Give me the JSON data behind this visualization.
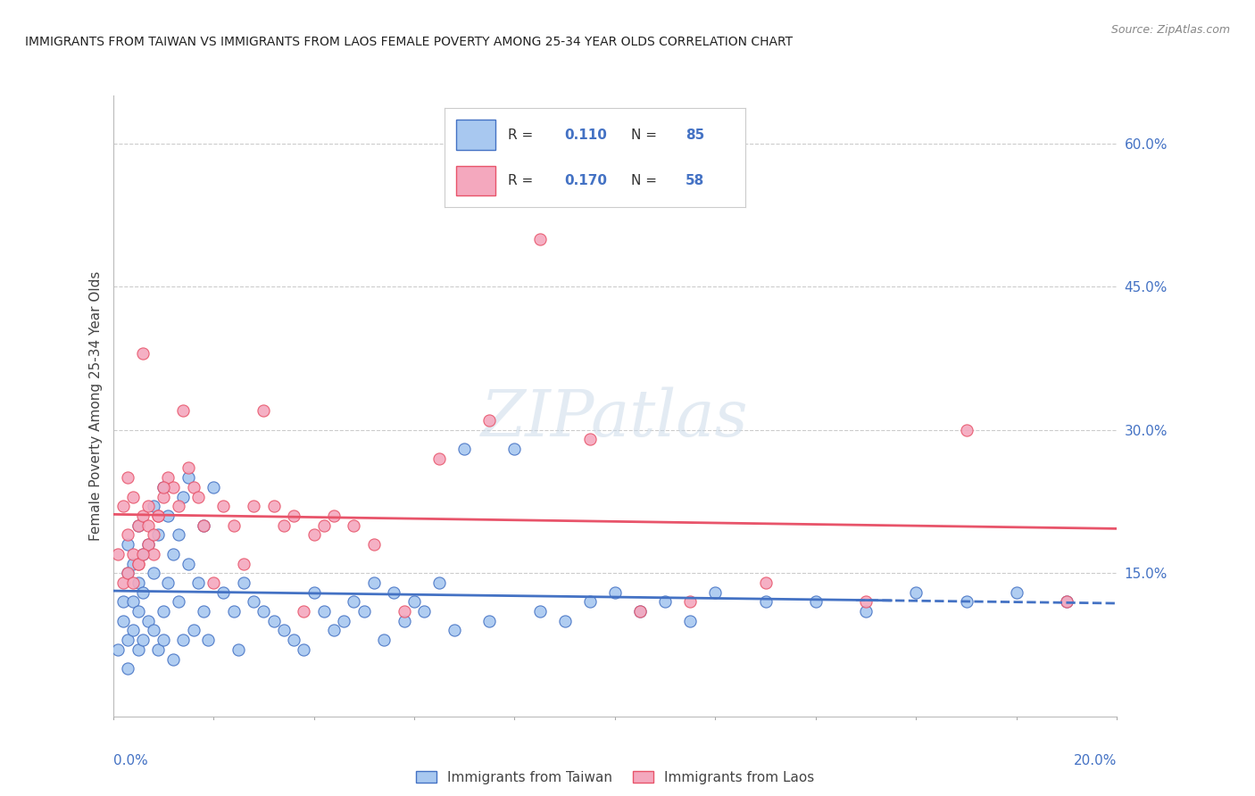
{
  "title": "IMMIGRANTS FROM TAIWAN VS IMMIGRANTS FROM LAOS FEMALE POVERTY AMONG 25-34 YEAR OLDS CORRELATION CHART",
  "source": "Source: ZipAtlas.com",
  "ylabel": "Female Poverty Among 25-34 Year Olds",
  "taiwan_color": "#a8c8f0",
  "laos_color": "#f4a8be",
  "taiwan_line_color": "#4472c4",
  "laos_line_color": "#e8546a",
  "xlim": [
    0.0,
    0.2
  ],
  "ylim": [
    0.0,
    0.65
  ],
  "taiwan_scatter_x": [
    0.001,
    0.002,
    0.002,
    0.003,
    0.003,
    0.003,
    0.003,
    0.004,
    0.004,
    0.004,
    0.005,
    0.005,
    0.005,
    0.005,
    0.006,
    0.006,
    0.006,
    0.007,
    0.007,
    0.008,
    0.008,
    0.008,
    0.009,
    0.009,
    0.01,
    0.01,
    0.01,
    0.011,
    0.011,
    0.012,
    0.012,
    0.013,
    0.013,
    0.014,
    0.014,
    0.015,
    0.015,
    0.016,
    0.017,
    0.018,
    0.018,
    0.019,
    0.02,
    0.022,
    0.024,
    0.025,
    0.026,
    0.028,
    0.03,
    0.032,
    0.034,
    0.036,
    0.038,
    0.04,
    0.042,
    0.044,
    0.046,
    0.048,
    0.05,
    0.052,
    0.054,
    0.056,
    0.058,
    0.06,
    0.062,
    0.065,
    0.068,
    0.07,
    0.075,
    0.08,
    0.085,
    0.09,
    0.095,
    0.1,
    0.105,
    0.11,
    0.115,
    0.12,
    0.13,
    0.14,
    0.15,
    0.16,
    0.17,
    0.18,
    0.19
  ],
  "taiwan_scatter_y": [
    0.07,
    0.12,
    0.1,
    0.15,
    0.08,
    0.18,
    0.05,
    0.12,
    0.09,
    0.16,
    0.14,
    0.07,
    0.11,
    0.2,
    0.17,
    0.08,
    0.13,
    0.18,
    0.1,
    0.15,
    0.22,
    0.09,
    0.07,
    0.19,
    0.24,
    0.11,
    0.08,
    0.21,
    0.14,
    0.17,
    0.06,
    0.19,
    0.12,
    0.23,
    0.08,
    0.16,
    0.25,
    0.09,
    0.14,
    0.2,
    0.11,
    0.08,
    0.24,
    0.13,
    0.11,
    0.07,
    0.14,
    0.12,
    0.11,
    0.1,
    0.09,
    0.08,
    0.07,
    0.13,
    0.11,
    0.09,
    0.1,
    0.12,
    0.11,
    0.14,
    0.08,
    0.13,
    0.1,
    0.12,
    0.11,
    0.14,
    0.09,
    0.28,
    0.1,
    0.28,
    0.11,
    0.1,
    0.12,
    0.13,
    0.11,
    0.12,
    0.1,
    0.13,
    0.12,
    0.12,
    0.11,
    0.13,
    0.12,
    0.13,
    0.12
  ],
  "laos_scatter_x": [
    0.001,
    0.002,
    0.002,
    0.003,
    0.003,
    0.004,
    0.004,
    0.005,
    0.005,
    0.006,
    0.006,
    0.007,
    0.007,
    0.008,
    0.009,
    0.01,
    0.011,
    0.012,
    0.013,
    0.014,
    0.015,
    0.016,
    0.017,
    0.018,
    0.02,
    0.022,
    0.024,
    0.026,
    0.028,
    0.03,
    0.032,
    0.034,
    0.036,
    0.038,
    0.04,
    0.042,
    0.044,
    0.048,
    0.052,
    0.058,
    0.065,
    0.075,
    0.085,
    0.095,
    0.105,
    0.115,
    0.13,
    0.15,
    0.17,
    0.19,
    0.003,
    0.004,
    0.005,
    0.006,
    0.007,
    0.008,
    0.009,
    0.01
  ],
  "laos_scatter_y": [
    0.17,
    0.14,
    0.22,
    0.19,
    0.25,
    0.23,
    0.17,
    0.16,
    0.2,
    0.38,
    0.21,
    0.18,
    0.22,
    0.17,
    0.21,
    0.23,
    0.25,
    0.24,
    0.22,
    0.32,
    0.26,
    0.24,
    0.23,
    0.2,
    0.14,
    0.22,
    0.2,
    0.16,
    0.22,
    0.32,
    0.22,
    0.2,
    0.21,
    0.11,
    0.19,
    0.2,
    0.21,
    0.2,
    0.18,
    0.11,
    0.27,
    0.31,
    0.5,
    0.29,
    0.11,
    0.12,
    0.14,
    0.12,
    0.3,
    0.12,
    0.15,
    0.14,
    0.16,
    0.17,
    0.2,
    0.19,
    0.21,
    0.24
  ]
}
